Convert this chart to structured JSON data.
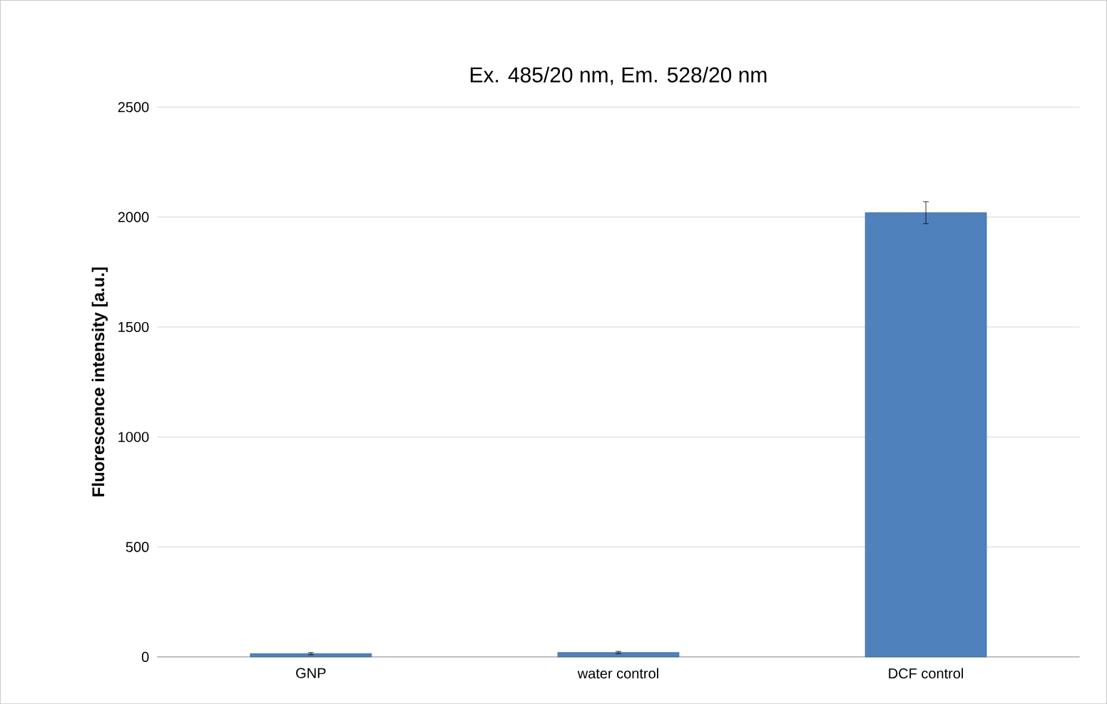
{
  "chart_data": {
    "type": "bar",
    "title": "Ex. 485/20 nm, Em. 528/20 nm",
    "ylabel": "Fluorescence intensity [a.u.]",
    "categories": [
      "GNP",
      "water control",
      "DCF control"
    ],
    "values": [
      15,
      20,
      2020
    ],
    "errors": [
      5,
      5,
      50
    ],
    "color": "#4f81bd",
    "ylim": [
      0,
      2500
    ],
    "yticks": [
      0,
      500,
      1000,
      1500,
      2000,
      2500
    ],
    "grid": "y"
  }
}
